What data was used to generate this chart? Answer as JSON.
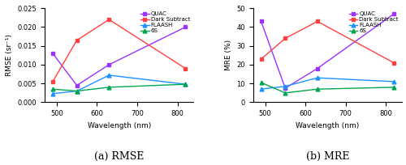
{
  "wavelengths": [
    490,
    550,
    630,
    820
  ],
  "rmse": {
    "QUAC": [
      0.013,
      0.0045,
      0.01,
      0.02
    ],
    "Dark Subtract": [
      0.0055,
      0.0165,
      0.022,
      0.009
    ],
    "FLAASH": [
      0.0023,
      0.003,
      0.0072,
      0.0048
    ],
    "6S": [
      0.0035,
      0.003,
      0.004,
      0.0048
    ]
  },
  "mre": {
    "QUAC": [
      43,
      7.5,
      18,
      47
    ],
    "Dark Subtract": [
      23,
      34,
      43,
      21
    ],
    "FLAASH": [
      7,
      8.5,
      13,
      11
    ],
    "6S": [
      10.5,
      5,
      7,
      8
    ]
  },
  "colors": {
    "QUAC": "#9B30FF",
    "Dark Subtract": "#FF4040",
    "FLAASH": "#1E90FF",
    "6S": "#00A550"
  },
  "markers": {
    "QUAC": "s",
    "Dark Subtract": "s",
    "FLAASH": "^",
    "6S": "^"
  },
  "rmse_ylim": [
    0,
    0.025
  ],
  "rmse_yticks": [
    0.0,
    0.005,
    0.01,
    0.015,
    0.02,
    0.025
  ],
  "mre_ylim": [
    0,
    50
  ],
  "mre_yticks": [
    0,
    10,
    20,
    30,
    40,
    50
  ],
  "xlim": [
    470,
    840
  ],
  "xticks": [
    500,
    600,
    700,
    800
  ],
  "xlabel": "Wavelength (nm)",
  "rmse_ylabel": "RMSE (sr⁻¹)",
  "mre_ylabel": "MRE (%)",
  "label_a": "(a) RMSE",
  "label_b": "(b) MRE",
  "legend_order": [
    "QUAC",
    "Dark Subtract",
    "FLAASH",
    "6S"
  ]
}
